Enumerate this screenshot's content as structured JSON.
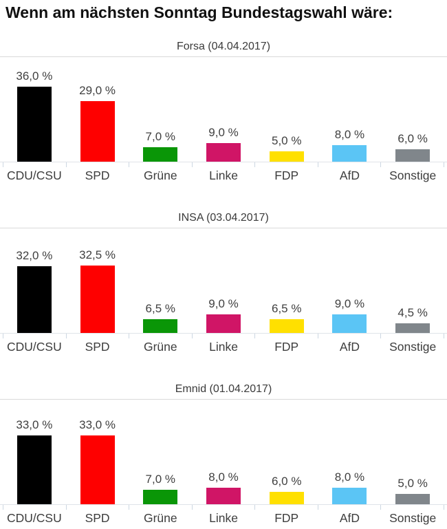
{
  "page_title": "Wenn am nächsten Sonntag Bundestagswahl wäre:",
  "parties": [
    {
      "name": "CDU/CSU",
      "color": "#000000"
    },
    {
      "name": "SPD",
      "color": "#fe0000"
    },
    {
      "name": "Grüne",
      "color": "#0a9607"
    },
    {
      "name": "Linke",
      "color": "#d01566"
    },
    {
      "name": "FDP",
      "color": "#ffe000"
    },
    {
      "name": "AfD",
      "color": "#5bc5f5"
    },
    {
      "name": "Sonstige",
      "color": "#80868b"
    }
  ],
  "axis_colors": {
    "baseline": "#dfe3e8",
    "tick": "#ccd7e2"
  },
  "chart_data": [
    {
      "type": "bar",
      "title": "Forsa (04.04.2017)",
      "categories": [
        "CDU/CSU",
        "SPD",
        "Grüne",
        "Linke",
        "FDP",
        "AfD",
        "Sonstige"
      ],
      "values": [
        36.0,
        29.0,
        7.0,
        9.0,
        5.0,
        8.0,
        6.0
      ],
      "value_labels": [
        "36,0 %",
        "29,0 %",
        "7,0 %",
        "9,0 %",
        "5,0 %",
        "8,0 %",
        "6,0 %"
      ],
      "ylim": [
        0,
        40
      ],
      "grid": false,
      "legend": "none"
    },
    {
      "type": "bar",
      "title": "INSA (03.04.2017)",
      "categories": [
        "CDU/CSU",
        "SPD",
        "Grüne",
        "Linke",
        "FDP",
        "AfD",
        "Sonstige"
      ],
      "values": [
        32.0,
        32.5,
        6.5,
        9.0,
        6.5,
        9.0,
        4.5
      ],
      "value_labels": [
        "32,0 %",
        "32,5 %",
        "6,5 %",
        "9,0 %",
        "6,5 %",
        "9,0 %",
        "4,5 %"
      ],
      "ylim": [
        0,
        40
      ],
      "grid": false,
      "legend": "none"
    },
    {
      "type": "bar",
      "title": "Emnid (01.04.2017)",
      "categories": [
        "CDU/CSU",
        "SPD",
        "Grüne",
        "Linke",
        "FDP",
        "AfD",
        "Sonstige"
      ],
      "values": [
        33.0,
        33.0,
        7.0,
        8.0,
        6.0,
        8.0,
        5.0
      ],
      "value_labels": [
        "33,0 %",
        "33,0 %",
        "7,0 %",
        "8,0 %",
        "6,0 %",
        "8,0 %",
        "5,0 %"
      ],
      "ylim": [
        0,
        40
      ],
      "grid": false,
      "legend": "none"
    }
  ]
}
